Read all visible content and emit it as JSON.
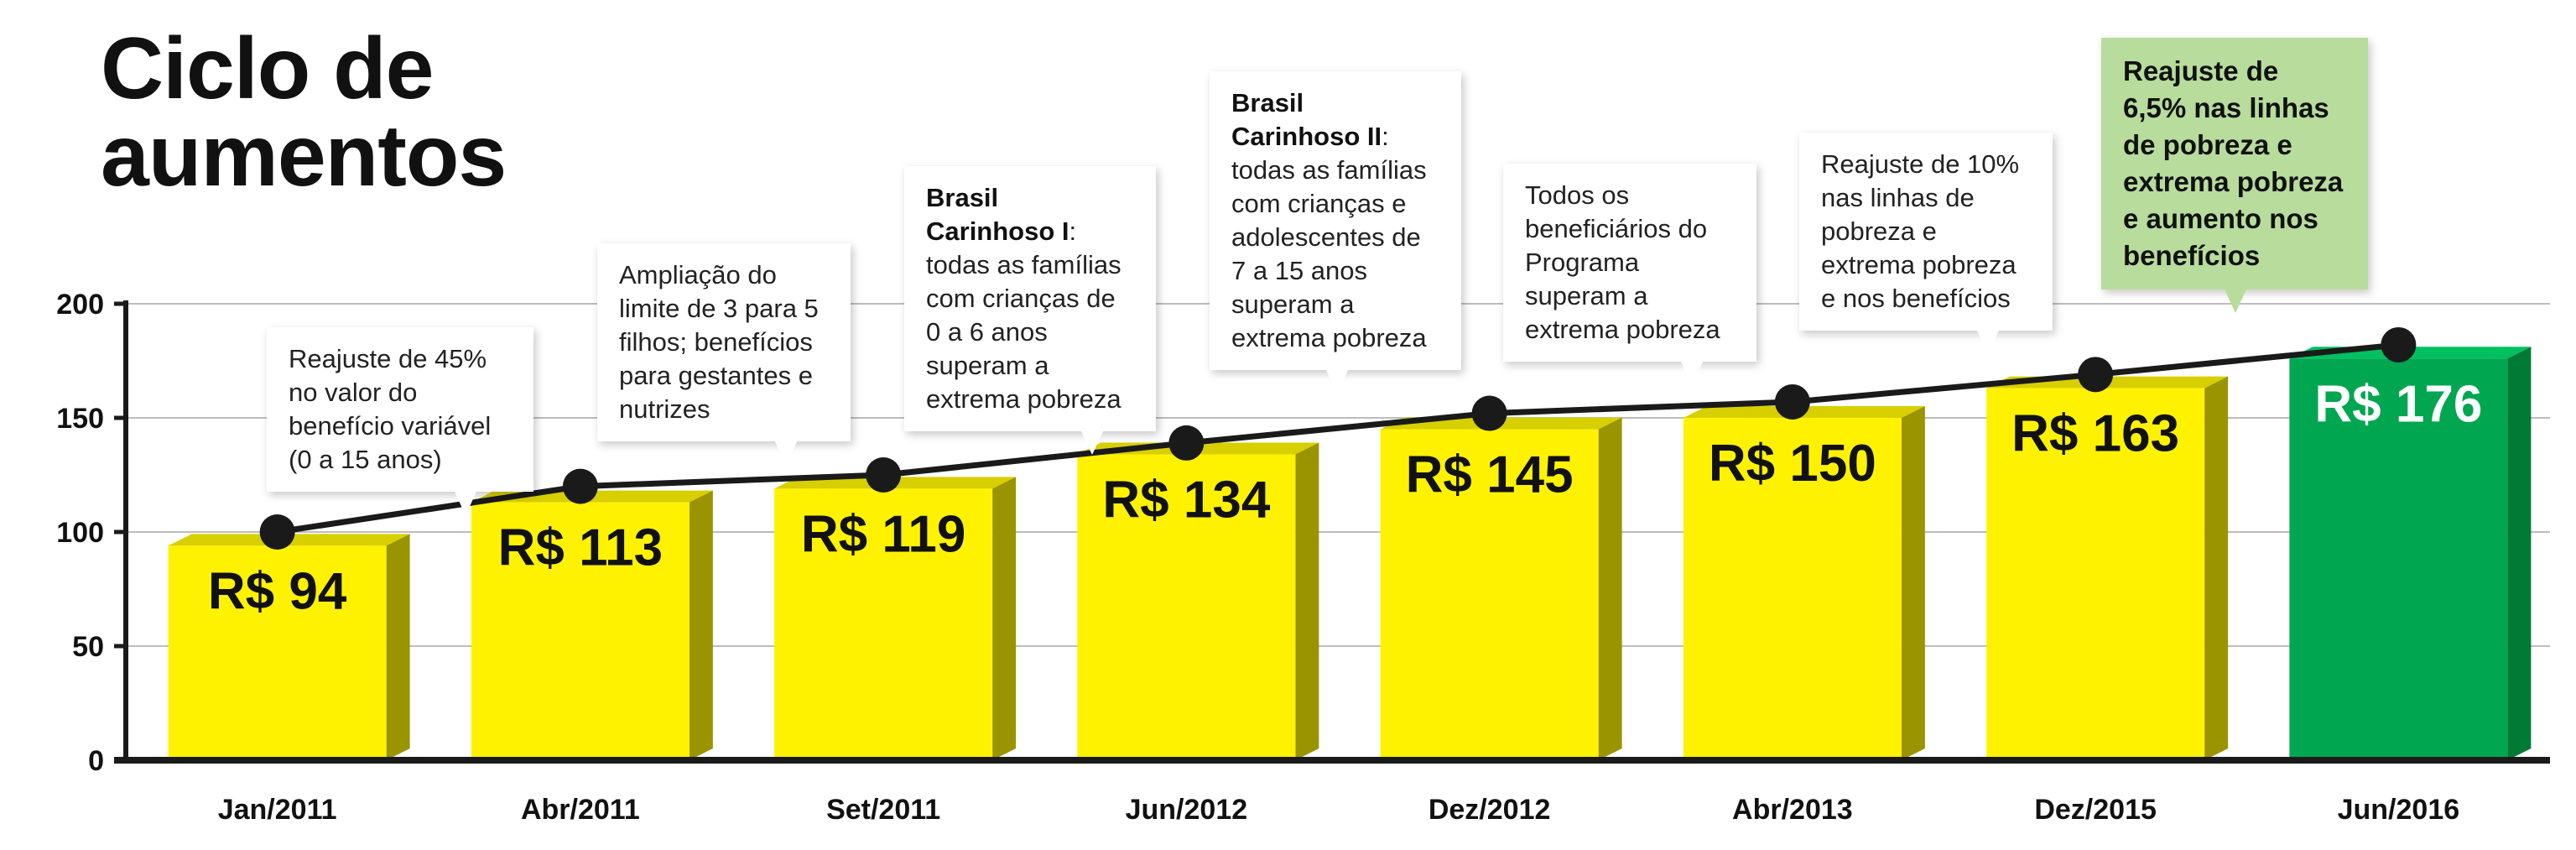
{
  "title": "Ciclo de aumentos",
  "chart_data": {
    "type": "bar",
    "title": "Ciclo de aumentos",
    "categories": [
      "Jan/2011",
      "Abr/2011",
      "Set/2011",
      "Jun/2012",
      "Dez/2012",
      "Abr/2013",
      "Dez/2015",
      "Jun/2016"
    ],
    "values": [
      94,
      113,
      119,
      134,
      145,
      150,
      163,
      176
    ],
    "value_labels": [
      "R$ 94",
      "R$ 113",
      "R$ 119",
      "R$ 134",
      "R$ 145",
      "R$ 150",
      "R$ 163",
      "R$ 176"
    ],
    "line_values": [
      100,
      120,
      125,
      139,
      152,
      157,
      169,
      182
    ],
    "ylim": [
      0,
      200
    ],
    "yticks": [
      0,
      50,
      100,
      150,
      200
    ],
    "grid": true,
    "colors": {
      "bar_front": "#fff200",
      "bar_side": "#9a9400",
      "bar_top": "#d8cf00",
      "highlight_front": "#00a650",
      "highlight_side": "#007a35",
      "highlight_top": "#00c060",
      "line": "#1a1a1a",
      "axis": "#1a1a1a",
      "grid": "#bdbdbd"
    }
  },
  "callouts": [
    {
      "bold": "",
      "text": "Reajuste de 45% no valor do benefício variável (0 a 15 anos)"
    },
    {
      "bold": "",
      "text": "Ampliação do limite de 3 para 5 filhos; benefícios para gestantes e nutrizes"
    },
    {
      "bold": "Brasil Carinhoso I",
      "text": ": todas as famílias com crianças de 0 a 6 anos superam a extrema pobreza"
    },
    {
      "bold": "Brasil Carinhoso II",
      "text": ": todas as famílias com crianças e adolescentes de 7 a 15 anos superam a extrema pobreza"
    },
    {
      "bold": "",
      "text": "Todos os beneficiários do Programa superam a extrema pobreza"
    },
    {
      "bold": "",
      "text": "Reajuste de 10% nas linhas de pobreza e extrema pobreza e nos benefícios"
    },
    {
      "bold": "",
      "text": "Reajuste de 6,5% nas linhas de pobreza e extrema pobreza e aumento nos benefícios"
    }
  ]
}
